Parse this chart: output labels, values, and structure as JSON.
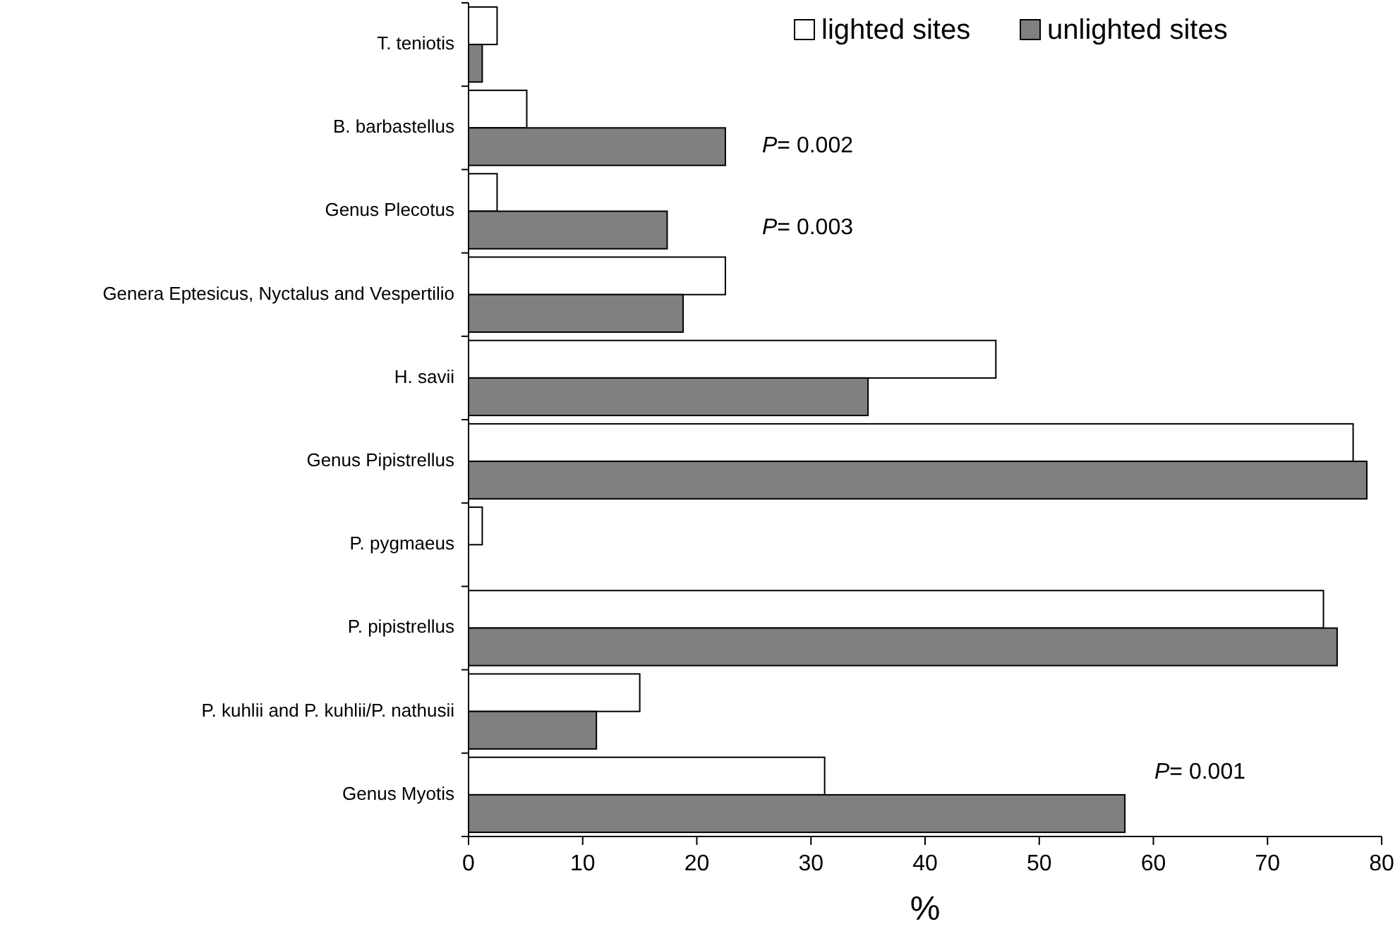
{
  "chart_data": {
    "type": "bar",
    "orientation": "horizontal",
    "xlabel": "%",
    "legend": "top right",
    "categories": [
      "T. teniotis",
      "B. barbastellus",
      "Genus Plecotus",
      "Genera Eptesicus, Nyctalus and Vespertilio",
      "H. savii",
      "Genus Pipistrellus",
      "P. pygmaeus",
      "P. pipistrellus",
      "P. kuhlii and P. kuhlii/P. nathusii",
      "Genus Myotis"
    ],
    "series": [
      {
        "name": "lighted sites",
        "color": "#ffffff",
        "values": [
          2.5,
          5.1,
          2.5,
          22.5,
          46.2,
          77.5,
          1.2,
          74.9,
          15.0,
          31.2
        ]
      },
      {
        "name": "unlighted sites",
        "color": "#808080",
        "values": [
          1.2,
          22.5,
          17.4,
          18.8,
          35.0,
          78.7,
          0,
          76.1,
          11.2,
          57.5
        ]
      }
    ],
    "xlim": [
      0,
      80
    ],
    "xticks": [
      0,
      10,
      20,
      30,
      40,
      50,
      60,
      70,
      80
    ],
    "annotations": [
      "P= 0.002",
      "P= 0.003",
      "P= 0.001"
    ]
  }
}
